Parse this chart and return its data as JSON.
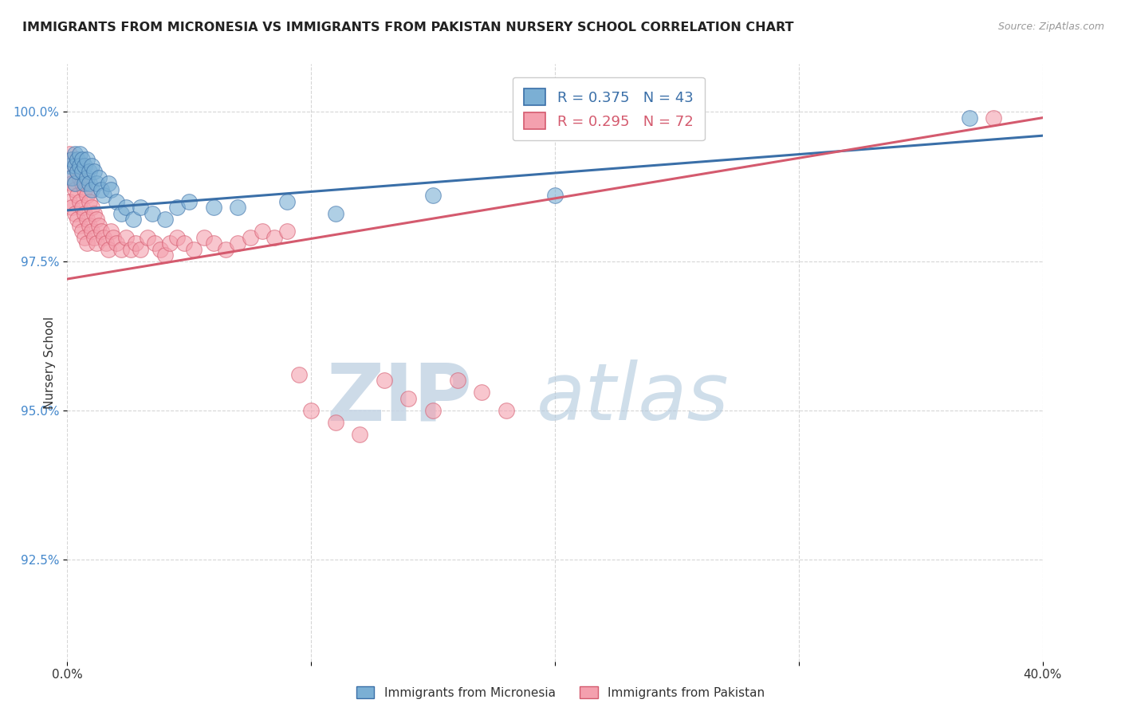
{
  "title": "IMMIGRANTS FROM MICRONESIA VS IMMIGRANTS FROM PAKISTAN NURSERY SCHOOL CORRELATION CHART",
  "source": "Source: ZipAtlas.com",
  "ylabel": "Nursery School",
  "xlim": [
    0.0,
    0.4
  ],
  "ylim": [
    0.908,
    1.008
  ],
  "ytick_values": [
    0.925,
    0.95,
    0.975,
    1.0
  ],
  "ytick_labels": [
    "92.5%",
    "95.0%",
    "97.5%",
    "100.0%"
  ],
  "xtick_values": [
    0.0,
    0.1,
    0.2,
    0.3,
    0.4
  ],
  "xtick_labels": [
    "0.0%",
    "",
    "",
    "",
    "40.0%"
  ],
  "legend_label1": "Immigrants from Micronesia",
  "legend_label2": "Immigrants from Pakistan",
  "blue_color": "#7BAFD4",
  "blue_line_color": "#3A6FA8",
  "pink_color": "#F4A0AE",
  "pink_line_color": "#D45A6E",
  "background_color": "#ffffff",
  "grid_color": "#CCCCCC",
  "micronesia_x": [
    0.001,
    0.002,
    0.002,
    0.003,
    0.003,
    0.003,
    0.004,
    0.004,
    0.005,
    0.005,
    0.006,
    0.006,
    0.007,
    0.007,
    0.008,
    0.008,
    0.009,
    0.009,
    0.01,
    0.01,
    0.011,
    0.012,
    0.013,
    0.014,
    0.015,
    0.017,
    0.018,
    0.02,
    0.022,
    0.024,
    0.027,
    0.03,
    0.035,
    0.04,
    0.045,
    0.05,
    0.06,
    0.07,
    0.09,
    0.11,
    0.15,
    0.2,
    0.37
  ],
  "micronesia_y": [
    0.991,
    0.992,
    0.989,
    0.993,
    0.991,
    0.988,
    0.992,
    0.99,
    0.993,
    0.991,
    0.99,
    0.992,
    0.988,
    0.991,
    0.989,
    0.992,
    0.99,
    0.988,
    0.987,
    0.991,
    0.99,
    0.988,
    0.989,
    0.987,
    0.986,
    0.988,
    0.987,
    0.985,
    0.983,
    0.984,
    0.982,
    0.984,
    0.983,
    0.982,
    0.984,
    0.985,
    0.984,
    0.984,
    0.985,
    0.983,
    0.986,
    0.986,
    0.999
  ],
  "pakistan_x": [
    0.001,
    0.001,
    0.001,
    0.002,
    0.002,
    0.002,
    0.003,
    0.003,
    0.003,
    0.004,
    0.004,
    0.004,
    0.005,
    0.005,
    0.005,
    0.006,
    0.006,
    0.006,
    0.007,
    0.007,
    0.007,
    0.008,
    0.008,
    0.008,
    0.009,
    0.009,
    0.01,
    0.01,
    0.011,
    0.011,
    0.012,
    0.012,
    0.013,
    0.014,
    0.015,
    0.016,
    0.017,
    0.018,
    0.019,
    0.02,
    0.022,
    0.024,
    0.026,
    0.028,
    0.03,
    0.033,
    0.036,
    0.038,
    0.04,
    0.042,
    0.045,
    0.048,
    0.052,
    0.056,
    0.06,
    0.065,
    0.07,
    0.075,
    0.08,
    0.085,
    0.09,
    0.095,
    0.1,
    0.11,
    0.12,
    0.13,
    0.14,
    0.15,
    0.16,
    0.17,
    0.18,
    0.38
  ],
  "pakistan_y": [
    0.993,
    0.989,
    0.985,
    0.992,
    0.988,
    0.984,
    0.991,
    0.987,
    0.983,
    0.99,
    0.986,
    0.982,
    0.989,
    0.985,
    0.981,
    0.988,
    0.984,
    0.98,
    0.987,
    0.983,
    0.979,
    0.986,
    0.982,
    0.978,
    0.985,
    0.981,
    0.984,
    0.98,
    0.983,
    0.979,
    0.982,
    0.978,
    0.981,
    0.98,
    0.979,
    0.978,
    0.977,
    0.98,
    0.979,
    0.978,
    0.977,
    0.979,
    0.977,
    0.978,
    0.977,
    0.979,
    0.978,
    0.977,
    0.976,
    0.978,
    0.979,
    0.978,
    0.977,
    0.979,
    0.978,
    0.977,
    0.978,
    0.979,
    0.98,
    0.979,
    0.98,
    0.956,
    0.95,
    0.948,
    0.946,
    0.955,
    0.952,
    0.95,
    0.955,
    0.953,
    0.95,
    0.999
  ],
  "mic_trend_x": [
    0.0,
    0.4
  ],
  "mic_trend_y": [
    0.9835,
    0.996
  ],
  "pak_trend_x": [
    0.0,
    0.4
  ],
  "pak_trend_y": [
    0.972,
    0.999
  ],
  "watermark_zip_color": "#C5D5E5",
  "watermark_atlas_color": "#B0C8DC"
}
